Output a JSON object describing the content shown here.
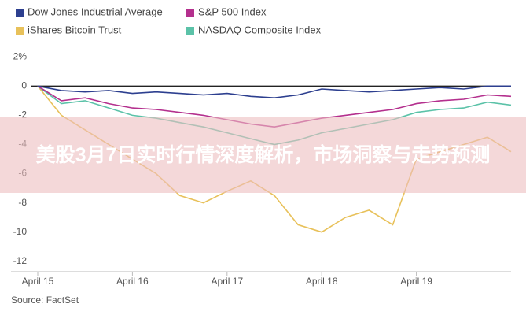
{
  "chart_data": {
    "type": "line",
    "source": "Source: FactSet",
    "x": [
      0,
      0.25,
      0.5,
      0.75,
      1,
      1.25,
      1.5,
      1.75,
      2,
      2.25,
      2.5,
      2.75,
      3,
      3.25,
      3.5,
      3.75,
      4,
      4.25,
      4.5,
      4.75,
      5
    ],
    "xlim": [
      0,
      5
    ],
    "xticks": [
      {
        "value": 0,
        "label": "April 15"
      },
      {
        "value": 1,
        "label": "April 16"
      },
      {
        "value": 2,
        "label": "April 17"
      },
      {
        "value": 3,
        "label": "April 18"
      },
      {
        "value": 4,
        "label": "April 19"
      }
    ],
    "ylim": [
      -12.5,
      2.5
    ],
    "yticks": [
      {
        "value": 2,
        "label": "2%"
      },
      0,
      -2,
      -4,
      -6,
      -8,
      -10,
      -12
    ],
    "series": [
      {
        "name": "Dow Jones Industrial Average",
        "color": "#2d3f8f",
        "values": [
          0,
          -0.3,
          -0.4,
          -0.3,
          -0.5,
          -0.4,
          -0.5,
          -0.6,
          -0.5,
          -0.7,
          -0.8,
          -0.6,
          -0.2,
          -0.3,
          -0.4,
          -0.3,
          -0.2,
          -0.1,
          -0.2,
          0,
          0
        ]
      },
      {
        "name": "S&P 500 Index",
        "color": "#b4308e",
        "values": [
          0,
          -1.0,
          -0.8,
          -1.2,
          -1.5,
          -1.6,
          -1.8,
          -2.0,
          -2.3,
          -2.6,
          -2.8,
          -2.5,
          -2.2,
          -2.0,
          -1.8,
          -1.6,
          -1.2,
          -1.0,
          -0.9,
          -0.6,
          -0.7
        ]
      },
      {
        "name": "iShares Bitcoin Trust",
        "color": "#e8c15a",
        "values": [
          0,
          -2,
          -3,
          -4,
          -5,
          -6,
          -7.5,
          -8,
          -7.2,
          -6.5,
          -7.5,
          -9.5,
          -10,
          -9,
          -8.5,
          -9.5,
          -5,
          -4.5,
          -4,
          -3.5,
          -4.5
        ]
      },
      {
        "name": "NASDAQ Composite Index",
        "color": "#5bc2a8",
        "values": [
          0,
          -1.2,
          -1.0,
          -1.5,
          -2.0,
          -2.2,
          -2.5,
          -2.8,
          -3.2,
          -3.6,
          -4.0,
          -3.7,
          -3.2,
          -2.9,
          -2.6,
          -2.3,
          -1.8,
          -1.6,
          -1.5,
          -1.1,
          -1.3
        ]
      }
    ],
    "legend_order": [
      0,
      1,
      2,
      3
    ]
  },
  "banner": {
    "title": "美股3月7日实时行情深度解析，市场洞察与走势预测"
  }
}
